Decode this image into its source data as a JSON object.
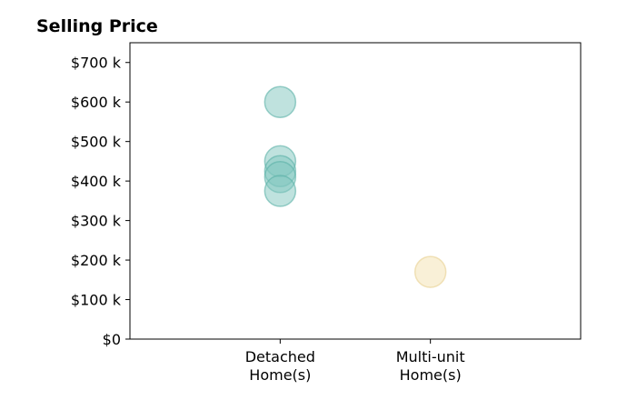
{
  "chart_data": {
    "type": "scatter",
    "title": "Selling Price",
    "xlabel": "",
    "ylabel": "",
    "categories": [
      "Detached Home(s)",
      "Multi-unit Home(s)"
    ],
    "category_labels": [
      [
        "Detached",
        "Home(s)"
      ],
      [
        "Multi-unit",
        "Home(s)"
      ]
    ],
    "xlim": [
      -1,
      2
    ],
    "ylim": [
      0,
      750000
    ],
    "yticks": [
      0,
      100000,
      200000,
      300000,
      400000,
      500000,
      600000,
      700000
    ],
    "ytick_labels": [
      "$0",
      "$100 k",
      "$200 k",
      "$300 k",
      "$400 k",
      "$500 k",
      "$600 k",
      "$700 k"
    ],
    "grid": false,
    "legend": "none",
    "series": [
      {
        "color": "#7fc5bd",
        "edge_color": "#5ab0a6",
        "points": [
          {
            "category": "Detached Home(s)",
            "y": 600000
          },
          {
            "category": "Detached Home(s)",
            "y": 450000
          },
          {
            "category": "Detached Home(s)",
            "y": 425000
          },
          {
            "category": "Detached Home(s)",
            "y": 410000
          },
          {
            "category": "Detached Home(s)",
            "y": 375000
          }
        ]
      },
      {
        "color": "#f3e1b0",
        "edge_color": "#e8d091",
        "points": [
          {
            "category": "Multi-unit Home(s)",
            "y": 170000
          }
        ]
      }
    ]
  }
}
